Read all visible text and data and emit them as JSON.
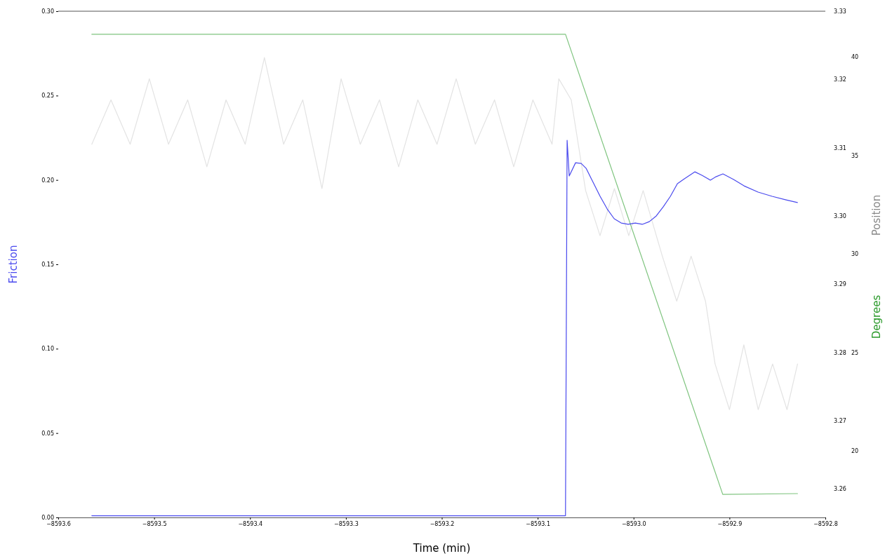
{
  "chart_data": {
    "type": "line",
    "xlabel": "Time (min)",
    "ylabel": "Friction",
    "y2label": "Position",
    "y3label": "Degrees",
    "xlim": [
      -8593.6,
      -8592.8
    ],
    "xticks": [
      {
        "value": -8593.6,
        "label": "−8593.6"
      },
      {
        "value": -8593.5,
        "label": "−8593.5"
      },
      {
        "value": -8593.4,
        "label": "−8593.4"
      },
      {
        "value": -8593.3,
        "label": "−8593.3"
      },
      {
        "value": -8593.2,
        "label": "−8593.2"
      },
      {
        "value": -8593.1,
        "label": "−8593.1"
      },
      {
        "value": -8593.0,
        "label": "−8593.0"
      },
      {
        "value": -8592.9,
        "label": "−8592.9"
      },
      {
        "value": -8592.8,
        "label": "−8592.8"
      }
    ],
    "ylim": [
      0,
      0.3
    ],
    "yticks": [
      {
        "value": 0,
        "label": "0.00"
      },
      {
        "value": 0.05,
        "label": "0.05"
      },
      {
        "value": 0.1,
        "label": "0.10"
      },
      {
        "value": 0.15,
        "label": "0.15"
      },
      {
        "value": 0.2,
        "label": "0.20"
      },
      {
        "value": 0.25,
        "label": "0.25"
      },
      {
        "value": 0.3,
        "label": "0.30"
      }
    ],
    "y2lim": [
      3.2558,
      3.33
    ],
    "y2ticks": [
      3.26,
      3.27,
      3.28,
      3.29,
      {
        "value": 3.3,
        "label": "3.30"
      },
      3.31,
      3.32,
      3.33
    ],
    "y3lim": [
      16.62,
      42.31
    ],
    "y3ticks": [
      20,
      25,
      30,
      35,
      40
    ],
    "grid": false,
    "legend": false,
    "marker": "none",
    "line_style": "solid",
    "series": [
      {
        "axis": "y2",
        "color": "#e3e3e3",
        "x": [
          -8593.565,
          -8593.545,
          -8593.525,
          -8593.505,
          -8593.485,
          -8593.465,
          -8593.445,
          -8593.425,
          -8593.405,
          -8593.385,
          -8593.365,
          -8593.345,
          -8593.325,
          -8593.305,
          -8593.285,
          -8593.265,
          -8593.245,
          -8593.225,
          -8593.205,
          -8593.185,
          -8593.165,
          -8593.145,
          -8593.125,
          -8593.105,
          -8593.085,
          -8593.078,
          -8593.065,
          -8593.05,
          -8593.035,
          -8593.02,
          -8593.005,
          -8592.99,
          -8592.97,
          -8592.955,
          -8592.94,
          -8592.925,
          -8592.915,
          -8592.9,
          -8592.885,
          -8592.87,
          -8592.855,
          -8592.84,
          -8592.829
        ],
        "values": [
          3.3105,
          3.317,
          3.3105,
          3.3201,
          3.3105,
          3.317,
          3.3072,
          3.317,
          3.3105,
          3.3232,
          3.3105,
          3.317,
          3.304,
          3.3201,
          3.3105,
          3.317,
          3.3072,
          3.317,
          3.3105,
          3.3201,
          3.3105,
          3.317,
          3.3072,
          3.317,
          3.3105,
          3.3201,
          3.317,
          3.3037,
          3.2971,
          3.304,
          3.2971,
          3.3037,
          3.2941,
          3.2875,
          3.2941,
          3.2875,
          3.2783,
          3.2716,
          3.2811,
          3.2716,
          3.2783,
          3.2716,
          3.2783
        ]
      },
      {
        "axis": "y3",
        "color": "#7fc47f",
        "x": [
          -8593.565,
          -8593.071,
          -8592.907,
          -8592.829
        ],
        "values": [
          41.14,
          41.14,
          17.79,
          17.83
        ]
      },
      {
        "axis": "y",
        "color": "#4a4aee",
        "x": [
          -8593.565,
          -8593.071,
          -8593.0693,
          -8593.0671,
          -8593.0605,
          -8593.0546,
          -8593.0495,
          -8593.0422,
          -8593.0349,
          -8593.0275,
          -8593.0202,
          -8593.0129,
          -8593.0056,
          -8592.9982,
          -8592.9909,
          -8592.9836,
          -8592.9763,
          -8592.969,
          -8592.9616,
          -8592.9543,
          -8592.947,
          -8592.936,
          -8592.9287,
          -8592.9199,
          -8592.9141,
          -8592.9068,
          -8592.8957,
          -8592.8848,
          -8592.8701,
          -8592.8555,
          -8592.8409,
          -8592.8291
        ],
        "values": [
          0.001,
          0.001,
          0.2235,
          0.2024,
          0.2102,
          0.2098,
          0.2069,
          0.1986,
          0.1903,
          0.1828,
          0.177,
          0.1745,
          0.1737,
          0.1745,
          0.1737,
          0.1753,
          0.1787,
          0.1841,
          0.1903,
          0.1978,
          0.2007,
          0.2048,
          0.2028,
          0.1999,
          0.2019,
          0.2036,
          0.2003,
          0.1965,
          0.1928,
          0.1903,
          0.1882,
          0.1866
        ]
      }
    ]
  }
}
